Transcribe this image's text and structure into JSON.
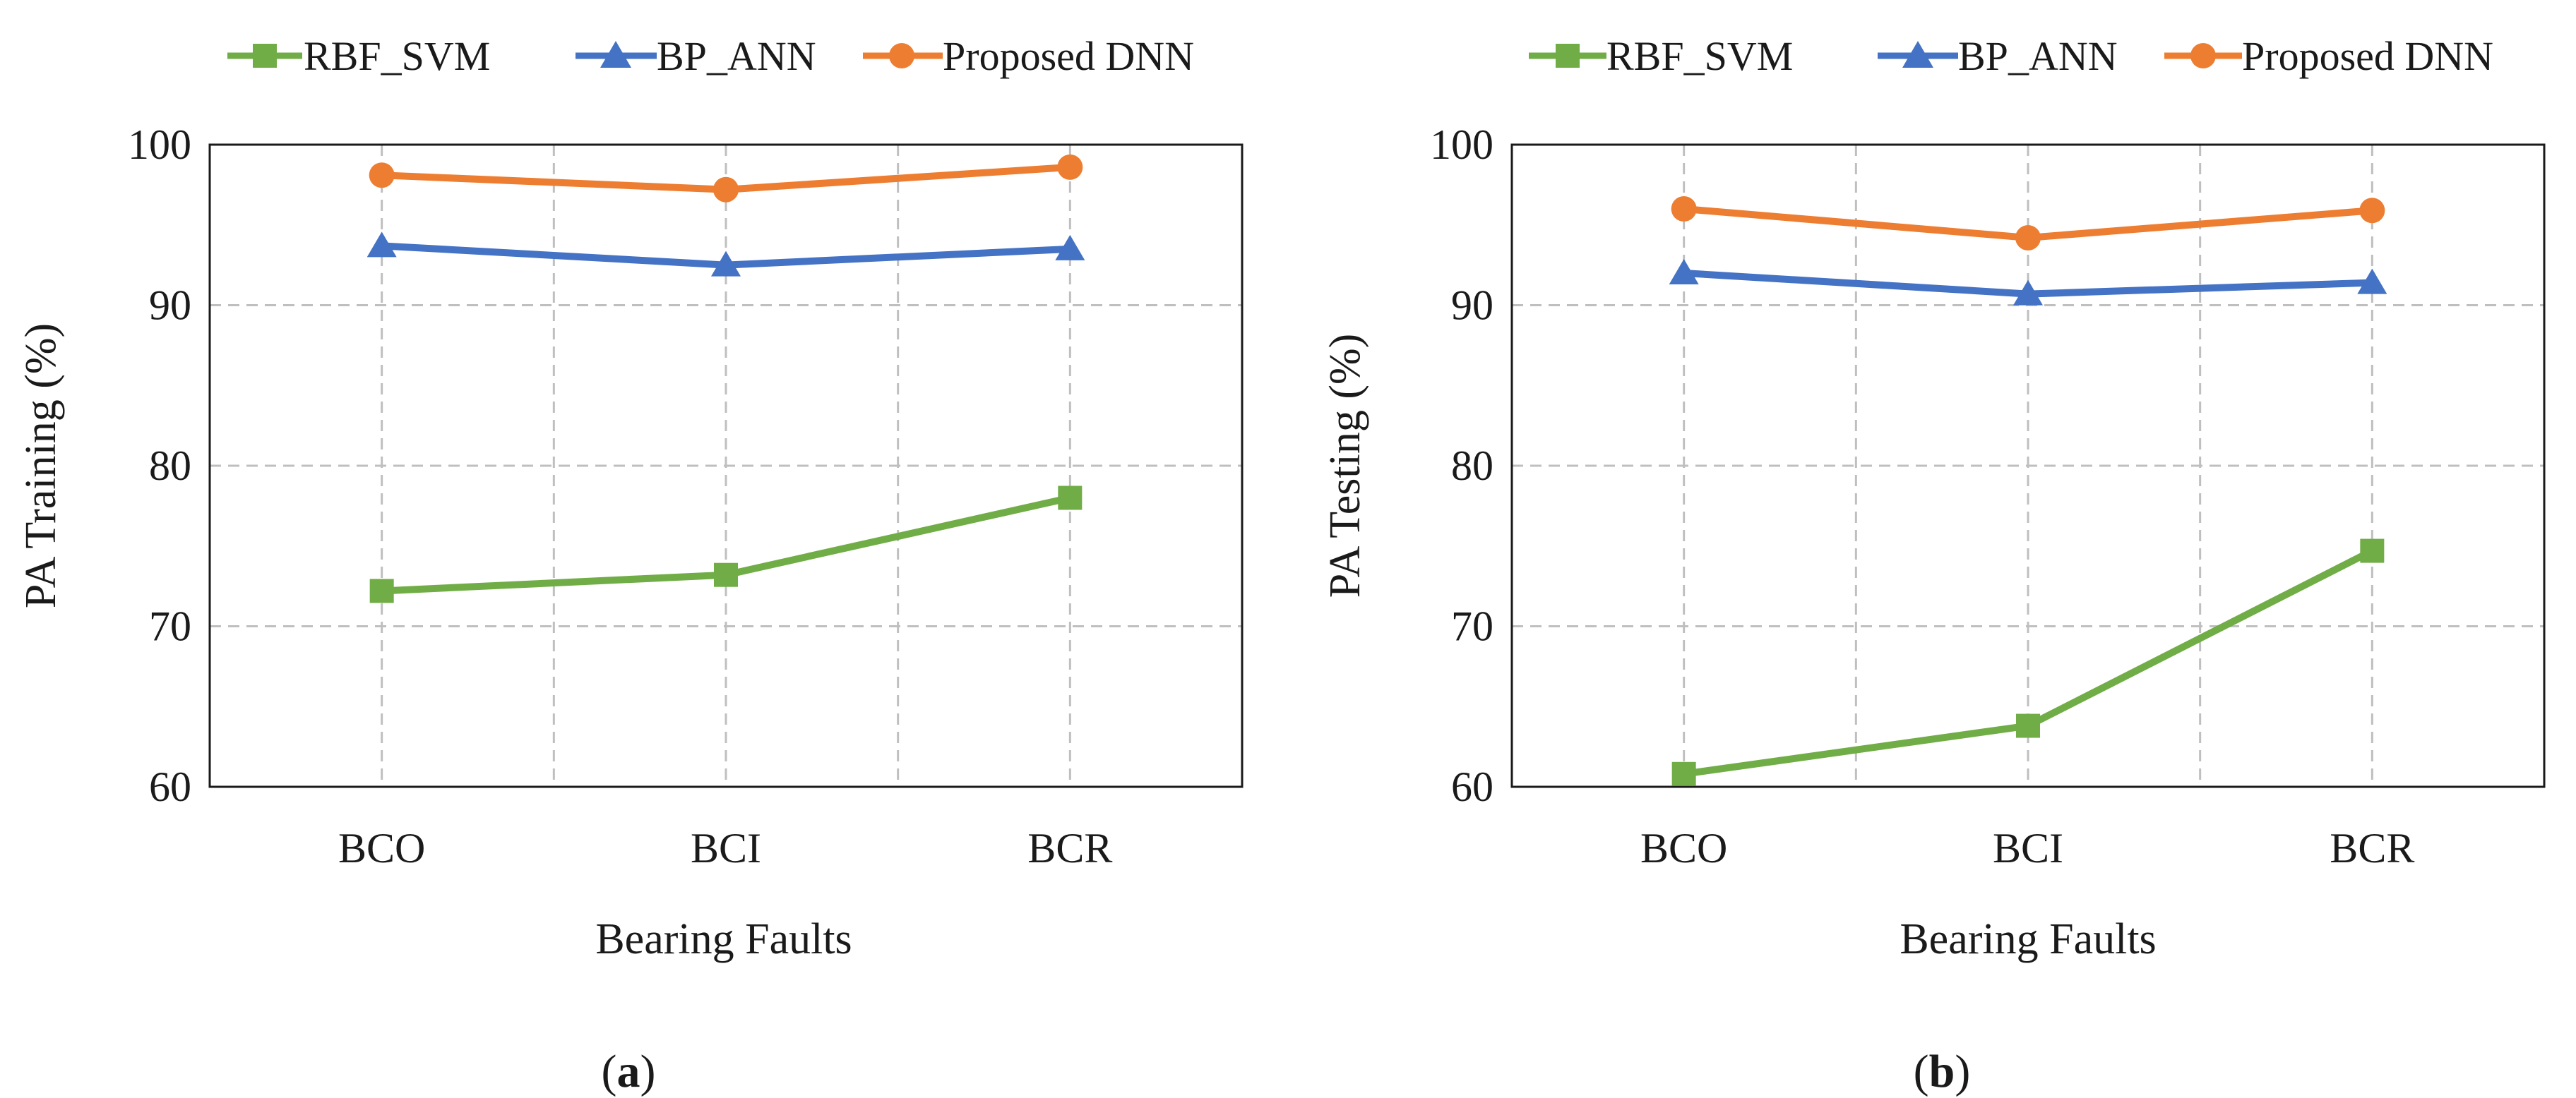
{
  "colors": {
    "RBF_SVM": "#70ad47",
    "BP_ANN": "#4472c4",
    "Proposed DNN": "#ed7d31",
    "grid": "#bfbfbf",
    "frame": "#1a1a1a"
  },
  "chart_data": [
    {
      "type": "line",
      "caption_letter": "a",
      "categories": [
        "BCO",
        "BCI",
        "BCR"
      ],
      "xlabel": "Bearing Faults",
      "ylabel": "PA Training (%)",
      "ylim": [
        60,
        100
      ],
      "yticks": [
        "60",
        "70",
        "80",
        "90",
        "100"
      ],
      "grid": true,
      "legend": "top",
      "series": [
        {
          "name": "RBF_SVM",
          "marker": "square",
          "values": [
            72.2,
            73.2,
            78.0
          ]
        },
        {
          "name": "BP_ANN",
          "marker": "triangle",
          "values": [
            93.7,
            92.5,
            93.5
          ]
        },
        {
          "name": "Proposed DNN",
          "marker": "circle",
          "values": [
            98.1,
            97.2,
            98.6
          ]
        }
      ]
    },
    {
      "type": "line",
      "caption_letter": "b",
      "categories": [
        "BCO",
        "BCI",
        "BCR"
      ],
      "xlabel": "Bearing Faults",
      "ylabel": "PA Testing (%)",
      "ylim": [
        60,
        100
      ],
      "yticks": [
        "60",
        "70",
        "80",
        "90",
        "100"
      ],
      "grid": true,
      "legend": "top",
      "series": [
        {
          "name": "RBF_SVM",
          "marker": "square",
          "values": [
            60.8,
            63.8,
            74.7
          ]
        },
        {
          "name": "BP_ANN",
          "marker": "triangle",
          "values": [
            92.0,
            90.7,
            91.4
          ]
        },
        {
          "name": "Proposed DNN",
          "marker": "circle",
          "values": [
            96.0,
            94.2,
            95.9
          ]
        }
      ]
    }
  ]
}
